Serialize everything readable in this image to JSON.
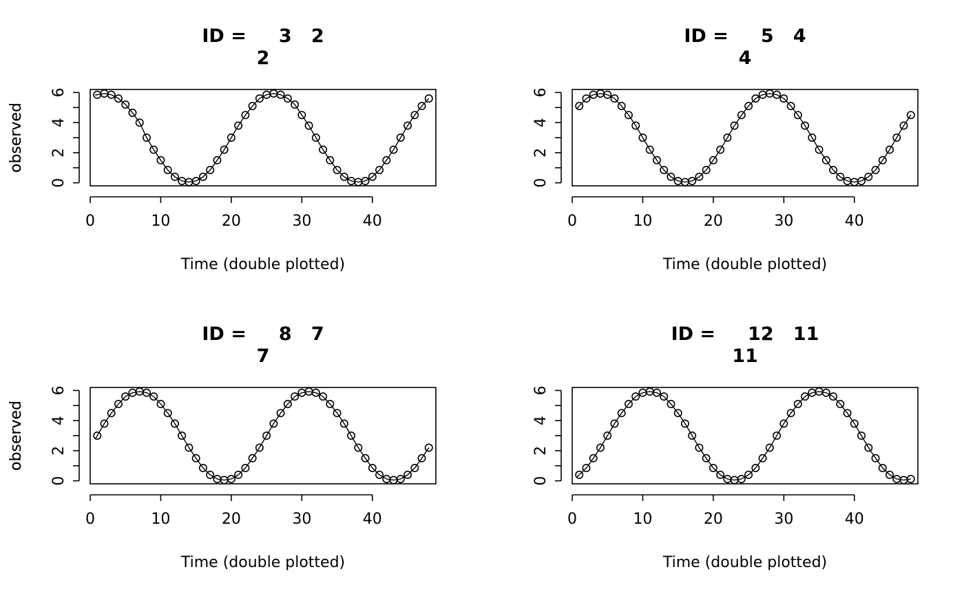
{
  "chart_data": [
    {
      "type": "line",
      "title_lines": [
        "ID =     3   2",
        "2"
      ],
      "xlabel": "Time (double plotted)",
      "ylabel": "observed",
      "x": [
        1,
        2,
        3,
        4,
        5,
        6,
        7,
        8,
        9,
        10,
        11,
        12,
        13,
        14,
        15,
        16,
        17,
        18,
        19,
        20,
        21,
        22,
        23,
        24,
        25,
        26,
        27,
        28,
        29,
        30,
        31,
        32,
        33,
        34,
        35,
        36,
        37,
        38,
        39,
        40,
        41,
        42,
        43,
        44,
        45,
        46,
        47,
        48
      ],
      "y": [
        5.85,
        5.93,
        5.85,
        5.6,
        5.2,
        4.65,
        4.0,
        3.0,
        2.2,
        1.5,
        0.85,
        0.4,
        0.12,
        0.05,
        0.12,
        0.4,
        0.85,
        1.5,
        2.2,
        3.0,
        3.8,
        4.5,
        5.1,
        5.6,
        5.85,
        5.93,
        5.85,
        5.6,
        5.2,
        4.5,
        3.8,
        3.0,
        2.2,
        1.5,
        0.85,
        0.4,
        0.12,
        0.05,
        0.12,
        0.4,
        0.85,
        1.5,
        2.2,
        3.0,
        3.8,
        4.5,
        5.1,
        5.6
      ],
      "xticks": [
        0,
        10,
        20,
        30,
        40
      ],
      "yticks": [
        0,
        2,
        4,
        6
      ],
      "xlim": [
        0,
        49
      ],
      "ylim": [
        -0.2,
        6.2
      ],
      "line_start_x": 0.7,
      "markers": "open-circle",
      "grid": false
    },
    {
      "type": "line",
      "title_lines": [
        "ID =     5   4",
        "4"
      ],
      "xlabel": "Time (double plotted)",
      "ylabel": "observed",
      "x": [
        1,
        2,
        3,
        4,
        5,
        6,
        7,
        8,
        9,
        10,
        11,
        12,
        13,
        14,
        15,
        16,
        17,
        18,
        19,
        20,
        21,
        22,
        23,
        24,
        25,
        26,
        27,
        28,
        29,
        30,
        31,
        32,
        33,
        34,
        35,
        36,
        37,
        38,
        39,
        40,
        41,
        42,
        43,
        44,
        45,
        46,
        47,
        48
      ],
      "y": [
        5.1,
        5.6,
        5.85,
        5.93,
        5.85,
        5.6,
        5.1,
        4.5,
        3.8,
        3.0,
        2.2,
        1.5,
        0.85,
        0.4,
        0.12,
        0.05,
        0.12,
        0.4,
        0.85,
        1.5,
        2.2,
        3.0,
        3.8,
        4.5,
        5.1,
        5.6,
        5.85,
        5.93,
        5.85,
        5.6,
        5.1,
        4.5,
        3.8,
        3.0,
        2.2,
        1.5,
        0.85,
        0.4,
        0.12,
        0.05,
        0.12,
        0.4,
        0.85,
        1.5,
        2.2,
        3.0,
        3.8,
        4.5
      ],
      "xticks": [
        0,
        10,
        20,
        30,
        40
      ],
      "yticks": [
        0,
        2,
        4,
        6
      ],
      "xlim": [
        0,
        49
      ],
      "ylim": [
        -0.2,
        6.2
      ],
      "line_start_x": 0.7,
      "markers": "open-circle",
      "grid": false
    },
    {
      "type": "line",
      "title_lines": [
        "ID =     8   7",
        "7"
      ],
      "xlabel": "Time (double plotted)",
      "ylabel": "observed",
      "x": [
        1,
        2,
        3,
        4,
        5,
        6,
        7,
        8,
        9,
        10,
        11,
        12,
        13,
        14,
        15,
        16,
        17,
        18,
        19,
        20,
        21,
        22,
        23,
        24,
        25,
        26,
        27,
        28,
        29,
        30,
        31,
        32,
        33,
        34,
        35,
        36,
        37,
        38,
        39,
        40,
        41,
        42,
        43,
        44,
        45,
        46,
        47,
        48
      ],
      "y": [
        3.0,
        3.8,
        4.5,
        5.1,
        5.6,
        5.85,
        5.93,
        5.85,
        5.6,
        5.1,
        4.5,
        3.8,
        3.0,
        2.2,
        1.5,
        0.85,
        0.4,
        0.12,
        0.05,
        0.12,
        0.4,
        0.85,
        1.5,
        2.2,
        3.0,
        3.8,
        4.5,
        5.1,
        5.6,
        5.85,
        5.93,
        5.85,
        5.6,
        5.1,
        4.5,
        3.8,
        3.0,
        2.2,
        1.5,
        0.85,
        0.4,
        0.12,
        0.05,
        0.12,
        0.4,
        0.85,
        1.5,
        2.2
      ],
      "xticks": [
        0,
        10,
        20,
        30,
        40
      ],
      "yticks": [
        0,
        2,
        4,
        6
      ],
      "xlim": [
        0,
        49
      ],
      "ylim": [
        -0.2,
        6.2
      ],
      "line_start_x": 0.7,
      "markers": "open-circle",
      "grid": false
    },
    {
      "type": "line",
      "title_lines": [
        "ID =     12   11",
        "11"
      ],
      "xlabel": "Time (double plotted)",
      "ylabel": "observed",
      "x": [
        1,
        2,
        3,
        4,
        5,
        6,
        7,
        8,
        9,
        10,
        11,
        12,
        13,
        14,
        15,
        16,
        17,
        18,
        19,
        20,
        21,
        22,
        23,
        24,
        25,
        26,
        27,
        28,
        29,
        30,
        31,
        32,
        33,
        34,
        35,
        36,
        37,
        38,
        39,
        40,
        41,
        42,
        43,
        44,
        45,
        46,
        47,
        48
      ],
      "y": [
        0.4,
        0.85,
        1.5,
        2.2,
        3.0,
        3.8,
        4.5,
        5.1,
        5.6,
        5.85,
        5.93,
        5.85,
        5.6,
        5.1,
        4.5,
        3.8,
        3.0,
        2.2,
        1.5,
        0.85,
        0.4,
        0.12,
        0.05,
        0.12,
        0.4,
        0.85,
        1.5,
        2.2,
        3.0,
        3.8,
        4.5,
        5.1,
        5.6,
        5.85,
        5.93,
        5.85,
        5.6,
        5.1,
        4.5,
        3.8,
        3.0,
        2.2,
        1.5,
        0.85,
        0.4,
        0.12,
        0.05,
        0.12
      ],
      "xticks": [
        0,
        10,
        20,
        30,
        40
      ],
      "yticks": [
        0,
        2,
        4,
        6
      ],
      "xlim": [
        0,
        49
      ],
      "ylim": [
        -0.2,
        6.2
      ],
      "line_start_x": 0.7,
      "markers": "open-circle",
      "grid": false
    }
  ]
}
